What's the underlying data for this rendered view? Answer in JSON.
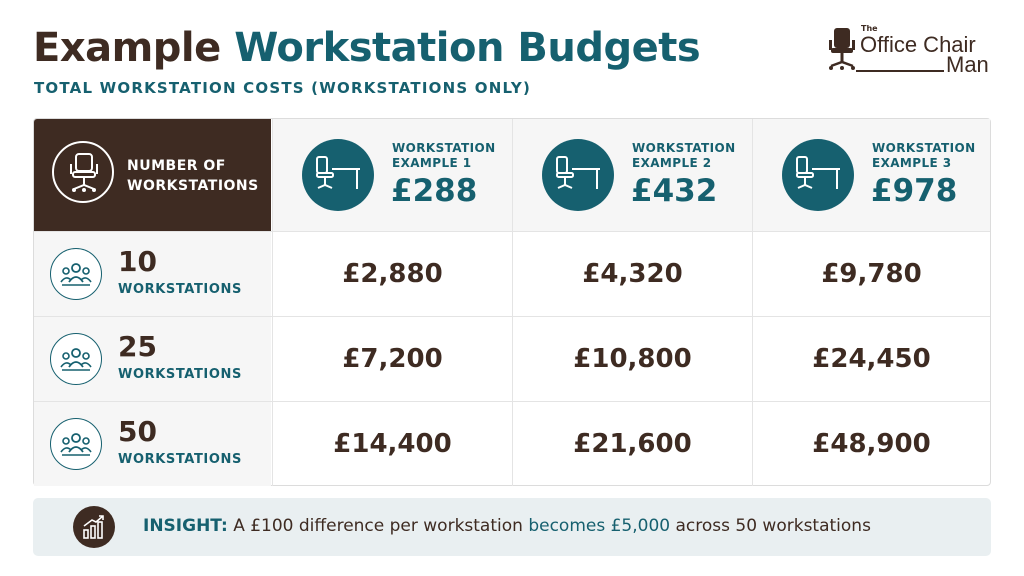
{
  "header": {
    "title_part1": "Example",
    "title_part2": "Workstation Budgets",
    "subtitle": "TOTAL WORKSTATION COSTS (WORKSTATIONS ONLY)"
  },
  "logo": {
    "the": "The",
    "main": "Office Chair",
    "man": "Man"
  },
  "table": {
    "corner_label": "NUMBER OF WORKSTATIONS",
    "columns": [
      {
        "label": "WORKSTATION EXAMPLE 1",
        "price": "£288"
      },
      {
        "label": "WORKSTATION EXAMPLE 2",
        "price": "£432"
      },
      {
        "label": "WORKSTATION EXAMPLE 3",
        "price": "£978"
      }
    ],
    "rows": [
      {
        "count": "10",
        "count_label": "WORKSTATIONS",
        "values": [
          "£2,880",
          "£4,320",
          "£9,780"
        ]
      },
      {
        "count": "25",
        "count_label": "WORKSTATIONS",
        "values": [
          "£7,200",
          "£10,800",
          "£24,450"
        ]
      },
      {
        "count": "50",
        "count_label": "WORKSTATIONS",
        "values": [
          "£14,400",
          "£21,600",
          "£48,900"
        ]
      }
    ]
  },
  "insight": {
    "label": "INSIGHT:",
    "text_part1": "A £100 difference per workstation",
    "highlight": "becomes £5,000",
    "text_part2": "across 50 workstations"
  },
  "colors": {
    "brown": "#3e2b22",
    "teal": "#16606f",
    "insight_bg": "#e9eff1"
  },
  "icons": {
    "logo": "office-chair-icon",
    "corner": "office-chair-icon",
    "columns": "chair-desk-icon",
    "rows": "people-group-icon",
    "insight": "bar-chart-growth-icon"
  }
}
